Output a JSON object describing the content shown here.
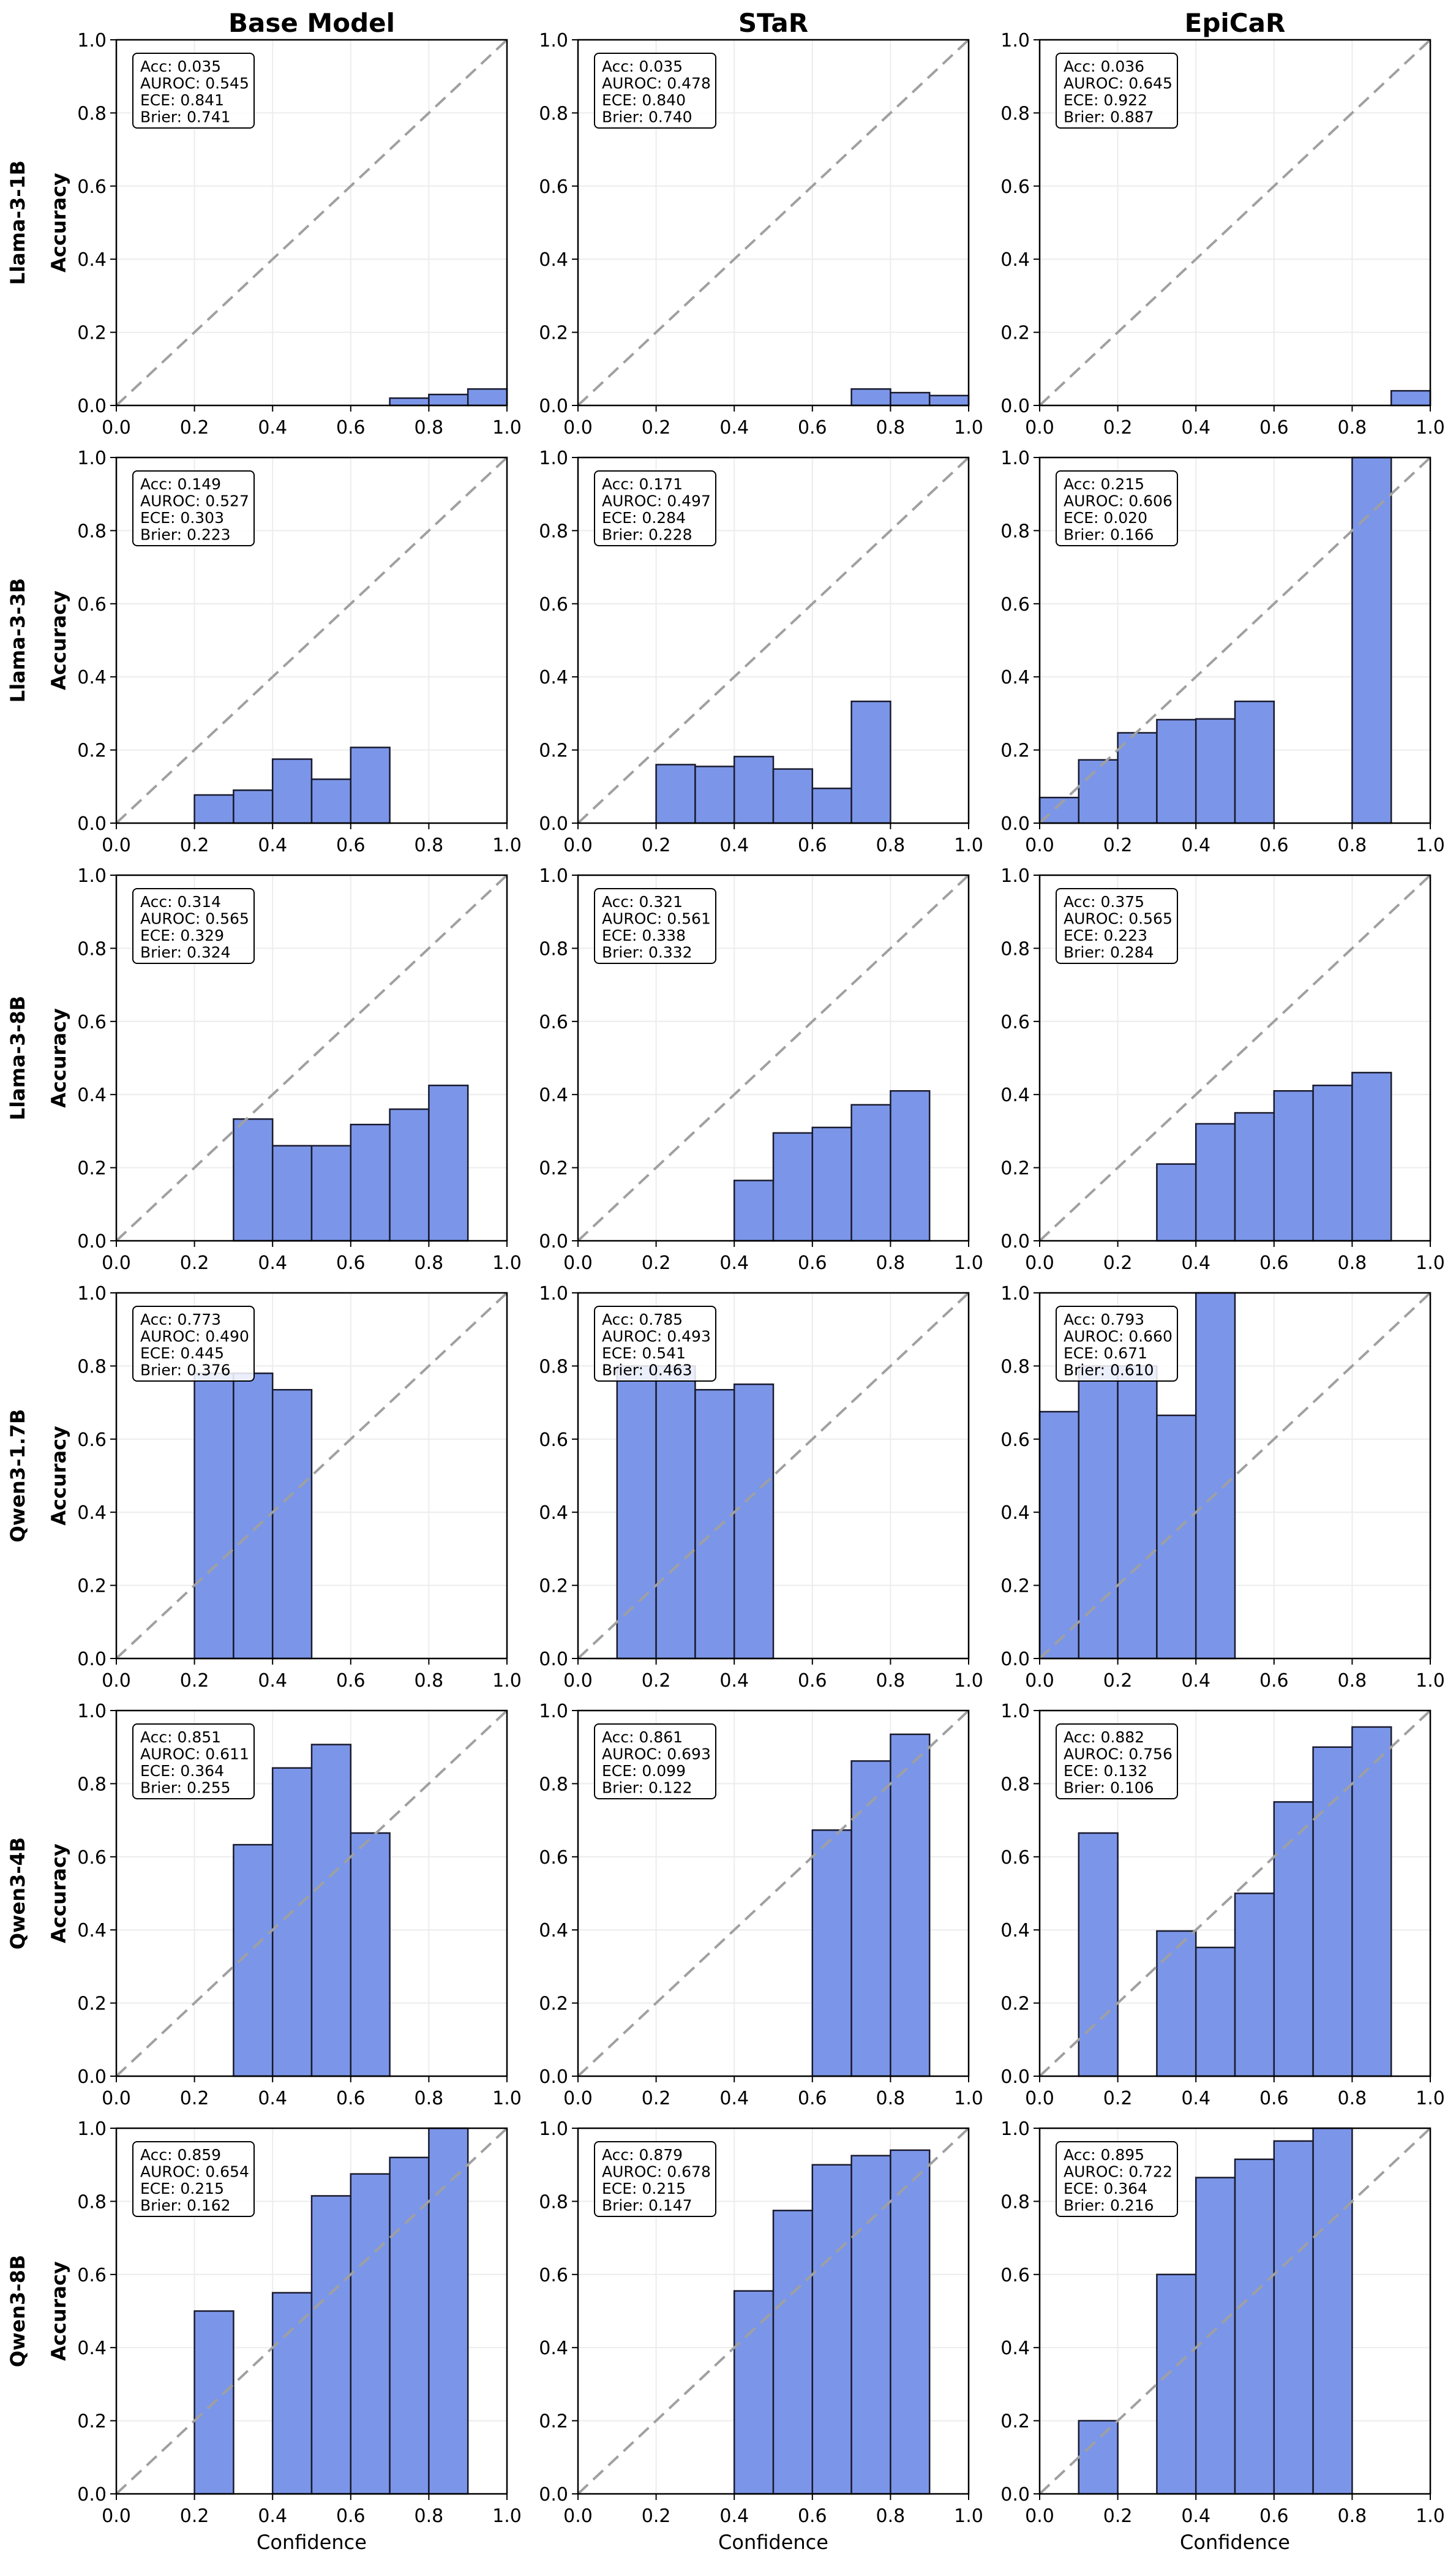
{
  "figure": {
    "column_titles": [
      "Base Model",
      "STaR",
      "EpiCaR"
    ],
    "row_titles": [
      "Llama-3-1B",
      "Llama-3-3B",
      "Llama-3-8B",
      "Qwen3-1.7B",
      "Qwen3-4B",
      "Qwen3-8B"
    ],
    "xlabel": "Confidence",
    "ylabel": "Accuracy",
    "xticks": [
      "0.0",
      "0.2",
      "0.4",
      "0.6",
      "0.8",
      "1.0"
    ],
    "yticks": [
      "0.0",
      "0.2",
      "0.4",
      "0.6",
      "0.8",
      "1.0"
    ],
    "colors": {
      "bar_fill": "#7b96e8",
      "bar_edge": "#1a1a2e",
      "diagonal": "#a0a0a0",
      "grid": "#ececec"
    }
  },
  "chart_data": [
    {
      "type": "bar",
      "row": "Llama-3-1B",
      "column": "Base Model",
      "xlim": [
        0,
        1
      ],
      "ylim": [
        0,
        1
      ],
      "bins": [
        [
          0.7,
          0.8,
          0.02
        ],
        [
          0.8,
          0.9,
          0.03
        ],
        [
          0.9,
          1.0,
          0.045
        ]
      ],
      "stats": [
        "Acc: 0.035",
        "AUROC: 0.545",
        "ECE: 0.841",
        "Brier: 0.741"
      ]
    },
    {
      "type": "bar",
      "row": "Llama-3-1B",
      "column": "STaR",
      "xlim": [
        0,
        1
      ],
      "ylim": [
        0,
        1
      ],
      "bins": [
        [
          0.7,
          0.8,
          0.045
        ],
        [
          0.8,
          0.9,
          0.035
        ],
        [
          0.9,
          1.0,
          0.027
        ]
      ],
      "stats": [
        "Acc: 0.035",
        "AUROC: 0.478",
        "ECE: 0.840",
        "Brier: 0.740"
      ]
    },
    {
      "type": "bar",
      "row": "Llama-3-1B",
      "column": "EpiCaR",
      "xlim": [
        0,
        1
      ],
      "ylim": [
        0,
        1
      ],
      "bins": [
        [
          0.9,
          1.0,
          0.04
        ]
      ],
      "stats": [
        "Acc: 0.036",
        "AUROC: 0.645",
        "ECE: 0.922",
        "Brier: 0.887"
      ]
    },
    {
      "type": "bar",
      "row": "Llama-3-3B",
      "column": "Base Model",
      "xlim": [
        0,
        1
      ],
      "ylim": [
        0,
        1
      ],
      "bins": [
        [
          0.2,
          0.3,
          0.077
        ],
        [
          0.3,
          0.4,
          0.09
        ],
        [
          0.4,
          0.5,
          0.175
        ],
        [
          0.5,
          0.6,
          0.12
        ],
        [
          0.6,
          0.7,
          0.207
        ]
      ],
      "stats": [
        "Acc: 0.149",
        "AUROC: 0.527",
        "ECE: 0.303",
        "Brier: 0.223"
      ]
    },
    {
      "type": "bar",
      "row": "Llama-3-3B",
      "column": "STaR",
      "xlim": [
        0,
        1
      ],
      "ylim": [
        0,
        1
      ],
      "bins": [
        [
          0.2,
          0.3,
          0.16
        ],
        [
          0.3,
          0.4,
          0.155
        ],
        [
          0.4,
          0.5,
          0.182
        ],
        [
          0.5,
          0.6,
          0.148
        ],
        [
          0.6,
          0.7,
          0.095
        ],
        [
          0.7,
          0.8,
          0.333
        ]
      ],
      "stats": [
        "Acc: 0.171",
        "AUROC: 0.497",
        "ECE: 0.284",
        "Brier: 0.228"
      ]
    },
    {
      "type": "bar",
      "row": "Llama-3-3B",
      "column": "EpiCaR",
      "xlim": [
        0,
        1
      ],
      "ylim": [
        0,
        1
      ],
      "bins": [
        [
          0.0,
          0.1,
          0.07
        ],
        [
          0.1,
          0.2,
          0.173
        ],
        [
          0.2,
          0.3,
          0.247
        ],
        [
          0.3,
          0.4,
          0.283
        ],
        [
          0.4,
          0.5,
          0.285
        ],
        [
          0.5,
          0.6,
          0.333
        ],
        [
          0.8,
          0.9,
          1.0
        ]
      ],
      "stats": [
        "Acc: 0.215",
        "AUROC: 0.606",
        "ECE: 0.020",
        "Brier: 0.166"
      ]
    },
    {
      "type": "bar",
      "row": "Llama-3-8B",
      "column": "Base Model",
      "xlim": [
        0,
        1
      ],
      "ylim": [
        0,
        1
      ],
      "bins": [
        [
          0.3,
          0.4,
          0.333
        ],
        [
          0.4,
          0.5,
          0.26
        ],
        [
          0.5,
          0.6,
          0.26
        ],
        [
          0.6,
          0.7,
          0.318
        ],
        [
          0.7,
          0.8,
          0.36
        ],
        [
          0.8,
          0.9,
          0.425
        ]
      ],
      "stats": [
        "Acc: 0.314",
        "AUROC: 0.565",
        "ECE: 0.329",
        "Brier: 0.324"
      ]
    },
    {
      "type": "bar",
      "row": "Llama-3-8B",
      "column": "STaR",
      "xlim": [
        0,
        1
      ],
      "ylim": [
        0,
        1
      ],
      "bins": [
        [
          0.4,
          0.5,
          0.165
        ],
        [
          0.5,
          0.6,
          0.295
        ],
        [
          0.6,
          0.7,
          0.31
        ],
        [
          0.7,
          0.8,
          0.372
        ],
        [
          0.8,
          0.9,
          0.41
        ]
      ],
      "stats": [
        "Acc: 0.321",
        "AUROC: 0.561",
        "ECE: 0.338",
        "Brier: 0.332"
      ]
    },
    {
      "type": "bar",
      "row": "Llama-3-8B",
      "column": "EpiCaR",
      "xlim": [
        0,
        1
      ],
      "ylim": [
        0,
        1
      ],
      "bins": [
        [
          0.3,
          0.4,
          0.21
        ],
        [
          0.4,
          0.5,
          0.32
        ],
        [
          0.5,
          0.6,
          0.35
        ],
        [
          0.6,
          0.7,
          0.41
        ],
        [
          0.7,
          0.8,
          0.425
        ],
        [
          0.8,
          0.9,
          0.46
        ]
      ],
      "stats": [
        "Acc: 0.375",
        "AUROC: 0.565",
        "ECE: 0.223",
        "Brier: 0.284"
      ]
    },
    {
      "type": "bar",
      "row": "Qwen3-1.7B",
      "column": "Base Model",
      "xlim": [
        0,
        1
      ],
      "ylim": [
        0,
        1
      ],
      "bins": [
        [
          0.2,
          0.3,
          0.78
        ],
        [
          0.3,
          0.4,
          0.78
        ],
        [
          0.4,
          0.5,
          0.735
        ]
      ],
      "stats": [
        "Acc: 0.773",
        "AUROC: 0.490",
        "ECE: 0.445",
        "Brier: 0.376"
      ]
    },
    {
      "type": "bar",
      "row": "Qwen3-1.7B",
      "column": "STaR",
      "xlim": [
        0,
        1
      ],
      "ylim": [
        0,
        1
      ],
      "bins": [
        [
          0.1,
          0.2,
          0.8
        ],
        [
          0.2,
          0.3,
          0.8
        ],
        [
          0.3,
          0.4,
          0.735
        ],
        [
          0.4,
          0.5,
          0.75
        ]
      ],
      "stats": [
        "Acc: 0.785",
        "AUROC: 0.493",
        "ECE: 0.541",
        "Brier: 0.463"
      ]
    },
    {
      "type": "bar",
      "row": "Qwen3-1.7B",
      "column": "EpiCaR",
      "xlim": [
        0,
        1
      ],
      "ylim": [
        0,
        1
      ],
      "bins": [
        [
          0.0,
          0.1,
          0.675
        ],
        [
          0.1,
          0.2,
          0.8
        ],
        [
          0.2,
          0.3,
          0.8
        ],
        [
          0.3,
          0.4,
          0.665
        ],
        [
          0.4,
          0.5,
          1.0
        ]
      ],
      "stats": [
        "Acc: 0.793",
        "AUROC: 0.660",
        "ECE: 0.671",
        "Brier: 0.610"
      ]
    },
    {
      "type": "bar",
      "row": "Qwen3-4B",
      "column": "Base Model",
      "xlim": [
        0,
        1
      ],
      "ylim": [
        0,
        1
      ],
      "bins": [
        [
          0.3,
          0.4,
          0.633
        ],
        [
          0.4,
          0.5,
          0.843
        ],
        [
          0.5,
          0.6,
          0.907
        ],
        [
          0.6,
          0.7,
          0.665
        ]
      ],
      "stats": [
        "Acc: 0.851",
        "AUROC: 0.611",
        "ECE: 0.364",
        "Brier: 0.255"
      ]
    },
    {
      "type": "bar",
      "row": "Qwen3-4B",
      "column": "STaR",
      "xlim": [
        0,
        1
      ],
      "ylim": [
        0,
        1
      ],
      "bins": [
        [
          0.6,
          0.7,
          0.673
        ],
        [
          0.7,
          0.8,
          0.862
        ],
        [
          0.8,
          0.9,
          0.935
        ]
      ],
      "stats": [
        "Acc: 0.861",
        "AUROC: 0.693",
        "ECE: 0.099",
        "Brier: 0.122"
      ]
    },
    {
      "type": "bar",
      "row": "Qwen3-4B",
      "column": "EpiCaR",
      "xlim": [
        0,
        1
      ],
      "ylim": [
        0,
        1
      ],
      "bins": [
        [
          0.1,
          0.2,
          0.665
        ],
        [
          0.3,
          0.4,
          0.397
        ],
        [
          0.4,
          0.5,
          0.352
        ],
        [
          0.5,
          0.6,
          0.5
        ],
        [
          0.6,
          0.7,
          0.75
        ],
        [
          0.7,
          0.8,
          0.9
        ],
        [
          0.8,
          0.9,
          0.955
        ]
      ],
      "stats": [
        "Acc: 0.882",
        "AUROC: 0.756",
        "ECE: 0.132",
        "Brier: 0.106"
      ]
    },
    {
      "type": "bar",
      "row": "Qwen3-8B",
      "column": "Base Model",
      "xlim": [
        0,
        1
      ],
      "ylim": [
        0,
        1
      ],
      "bins": [
        [
          0.2,
          0.3,
          0.5
        ],
        [
          0.4,
          0.5,
          0.55
        ],
        [
          0.5,
          0.6,
          0.815
        ],
        [
          0.6,
          0.7,
          0.875
        ],
        [
          0.7,
          0.8,
          0.92
        ],
        [
          0.8,
          0.9,
          1.0
        ]
      ],
      "stats": [
        "Acc: 0.859",
        "AUROC: 0.654",
        "ECE: 0.215",
        "Brier: 0.162"
      ]
    },
    {
      "type": "bar",
      "row": "Qwen3-8B",
      "column": "STaR",
      "xlim": [
        0,
        1
      ],
      "ylim": [
        0,
        1
      ],
      "bins": [
        [
          0.4,
          0.5,
          0.555
        ],
        [
          0.5,
          0.6,
          0.775
        ],
        [
          0.6,
          0.7,
          0.9
        ],
        [
          0.7,
          0.8,
          0.925
        ],
        [
          0.8,
          0.9,
          0.94
        ]
      ],
      "stats": [
        "Acc: 0.879",
        "AUROC: 0.678",
        "ECE: 0.215",
        "Brier: 0.147"
      ]
    },
    {
      "type": "bar",
      "row": "Qwen3-8B",
      "column": "EpiCaR",
      "xlim": [
        0,
        1
      ],
      "ylim": [
        0,
        1
      ],
      "bins": [
        [
          0.1,
          0.2,
          0.2
        ],
        [
          0.3,
          0.4,
          0.6
        ],
        [
          0.4,
          0.5,
          0.865
        ],
        [
          0.5,
          0.6,
          0.915
        ],
        [
          0.6,
          0.7,
          0.965
        ],
        [
          0.7,
          0.8,
          1.0
        ]
      ],
      "stats": [
        "Acc: 0.895",
        "AUROC: 0.722",
        "ECE: 0.364",
        "Brier: 0.216"
      ]
    }
  ]
}
